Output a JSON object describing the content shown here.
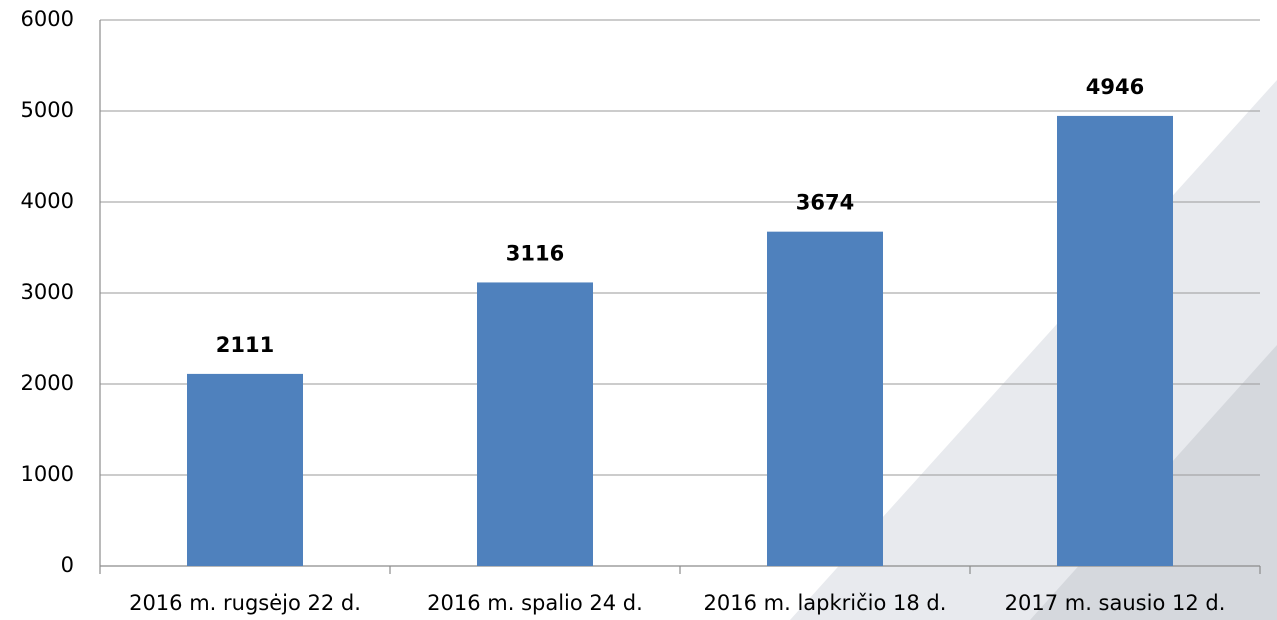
{
  "chart_data": {
    "type": "bar",
    "categories": [
      "2016 m. rugsėjo 22 d.",
      "2016 m. spalio 24 d.",
      "2016 m. lapkričio 18 d.",
      "2017 m. sausio 12 d."
    ],
    "values": [
      2111,
      3116,
      3674,
      4946
    ],
    "color": "#4f81bd",
    "ylim": [
      0,
      6000
    ],
    "yticks": [
      0,
      1000,
      2000,
      3000,
      4000,
      5000,
      6000
    ],
    "grid": true
  }
}
